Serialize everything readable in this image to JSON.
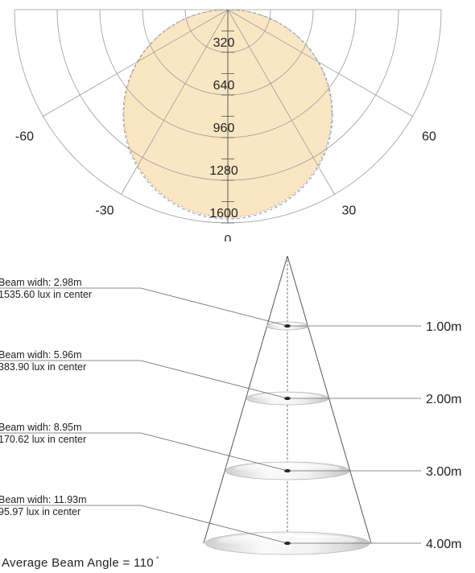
{
  "polar": {
    "radial_labels": [
      "320",
      "640",
      "960",
      "1280",
      "1600"
    ],
    "radial_values": [
      320,
      640,
      960,
      1280,
      1600
    ],
    "angle_labels": [
      {
        "text": "-60",
        "angle": -60
      },
      {
        "text": "-30",
        "angle": -30
      },
      {
        "text": "0",
        "angle": 0
      },
      {
        "text": "30",
        "angle": 30
      },
      {
        "text": "60",
        "angle": 60
      }
    ],
    "fill_color": "#fbe6c4",
    "curve_color_1": "#e8a464",
    "curve_color_2": "#6f9fd0"
  },
  "cone": {
    "levels": [
      {
        "distance": "1.00m",
        "width_text": "Beam widh: 2.98m",
        "lux_text": "1535.60 lux in center"
      },
      {
        "distance": "2.00m",
        "width_text": "Beam widh: 5.96m",
        "lux_text": "383.90 lux in center"
      },
      {
        "distance": "3.00m",
        "width_text": "Beam widh: 8.95m",
        "lux_text": "170.62 lux in center"
      },
      {
        "distance": "4.00m",
        "width_text": "Beam widh: 11.93m",
        "lux_text": "95.97 lux in center"
      }
    ]
  },
  "footer": {
    "text": "Average Beam Angle = 110",
    "degree_symbol": "°"
  }
}
